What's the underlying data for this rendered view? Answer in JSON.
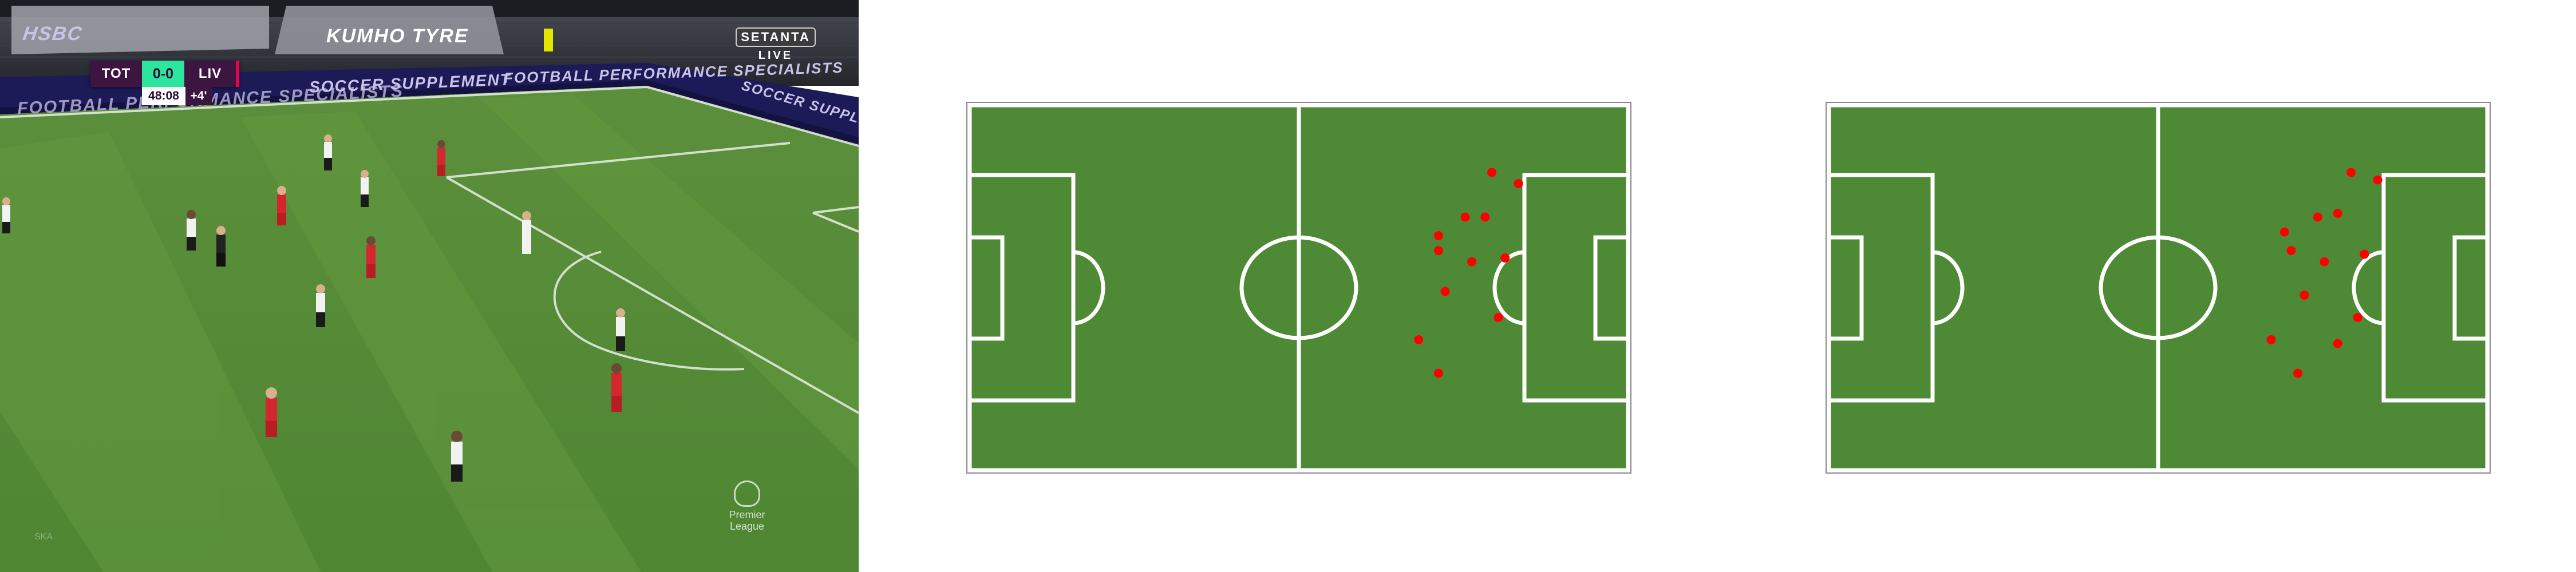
{
  "broadcast": {
    "scorebug": {
      "home_team": "TOT",
      "score": "0-0",
      "away_team": "LIV",
      "clock": "48:08",
      "added_time": "+4'"
    },
    "partner": {
      "name": "SETANTA",
      "sub": "LIVE"
    },
    "boards": {
      "upper_left": "HSBC",
      "upper_right": "KUMHO TYRE",
      "lower_1": "FOOTBALL PERFORMANCE SPECIALISTS",
      "lower_2": "SOCCER SUPPLEMENT",
      "lower_3": "FOOTBALL PERFORMANCE SPECIALISTS",
      "lower_4": "SOCCER SUPPLEMENT"
    },
    "league_logo_text": "Premier League",
    "corner_mark": "SKA",
    "colors": {
      "tottenham_kit": "#ffffff",
      "liverpool_kit": "#d3262e"
    }
  },
  "diagrams": {
    "pitch_color": "#4e8a35",
    "line_color": "#ffffff",
    "dot_color": "#ff0000",
    "pitch_1_points": [
      [
        0.79,
        0.19
      ],
      [
        0.83,
        0.22
      ],
      [
        0.75,
        0.31
      ],
      [
        0.78,
        0.31
      ],
      [
        0.71,
        0.36
      ],
      [
        0.71,
        0.4
      ],
      [
        0.76,
        0.43
      ],
      [
        0.81,
        0.42
      ],
      [
        0.72,
        0.51
      ],
      [
        0.8,
        0.58
      ],
      [
        0.68,
        0.64
      ],
      [
        0.71,
        0.73
      ]
    ],
    "pitch_2_points": [
      [
        0.79,
        0.19
      ],
      [
        0.83,
        0.21
      ],
      [
        0.74,
        0.31
      ],
      [
        0.77,
        0.3
      ],
      [
        0.69,
        0.35
      ],
      [
        0.7,
        0.4
      ],
      [
        0.75,
        0.43
      ],
      [
        0.81,
        0.41
      ],
      [
        0.72,
        0.52
      ],
      [
        0.8,
        0.58
      ],
      [
        0.67,
        0.64
      ],
      [
        0.77,
        0.65
      ],
      [
        0.71,
        0.73
      ]
    ]
  }
}
